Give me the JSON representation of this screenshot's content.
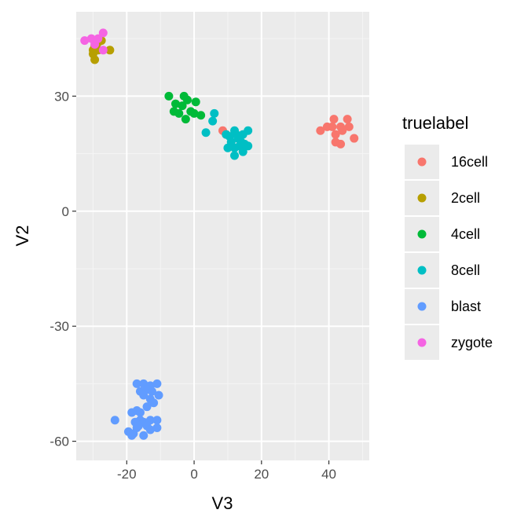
{
  "chart_data": {
    "type": "scatter",
    "xlabel": "V3",
    "ylabel": "V2",
    "xlim": [
      -35,
      52
    ],
    "ylim": [
      -65,
      52
    ],
    "x_ticks": [
      -20,
      0,
      20,
      40
    ],
    "y_ticks": [
      -60,
      -30,
      0,
      30
    ],
    "x_tick_labels": [
      "-20",
      "0",
      "20",
      "40"
    ],
    "y_tick_labels": [
      "-60",
      "-30",
      "0",
      "30"
    ],
    "grid": true,
    "background": "#ebebeb",
    "legend": {
      "title": "truelabel",
      "position": "right"
    },
    "series": [
      {
        "name": "16cell",
        "color": "#F8766D",
        "points": [
          [
            37.5,
            21
          ],
          [
            39.5,
            22
          ],
          [
            41.5,
            24
          ],
          [
            43.5,
            22
          ],
          [
            45.5,
            24
          ],
          [
            46,
            22
          ],
          [
            47.5,
            19
          ],
          [
            42,
            20
          ],
          [
            42,
            18
          ],
          [
            43.5,
            17.5
          ],
          [
            41,
            22
          ],
          [
            44,
            21
          ],
          [
            8.5,
            21
          ],
          [
            9.5,
            20
          ]
        ]
      },
      {
        "name": "2cell",
        "color": "#B79F00",
        "points": [
          [
            -29.5,
            39.5
          ],
          [
            -30,
            42
          ],
          [
            -29.5,
            43
          ],
          [
            -28.5,
            44
          ],
          [
            -27.5,
            44.5
          ],
          [
            -25,
            42
          ],
          [
            -28.5,
            42
          ],
          [
            -30,
            41
          ]
        ]
      },
      {
        "name": "4cell",
        "color": "#00BA38",
        "points": [
          [
            -7.5,
            30
          ],
          [
            -5.5,
            28
          ],
          [
            -3,
            30
          ],
          [
            -2,
            29
          ],
          [
            0.5,
            28.5
          ],
          [
            -6,
            26
          ],
          [
            -4.5,
            25.5
          ],
          [
            -2.5,
            24
          ],
          [
            -1,
            26
          ],
          [
            0,
            25.5
          ],
          [
            2,
            25
          ],
          [
            -3.5,
            27.5
          ]
        ]
      },
      {
        "name": "8cell",
        "color": "#00BFC4",
        "points": [
          [
            3.5,
            20.5
          ],
          [
            5.5,
            23.5
          ],
          [
            6,
            25.5
          ],
          [
            9.5,
            20
          ],
          [
            10.5,
            19.5
          ],
          [
            11,
            18
          ],
          [
            12,
            21
          ],
          [
            12.5,
            20
          ],
          [
            13,
            19
          ],
          [
            14,
            18
          ],
          [
            13.5,
            17
          ],
          [
            12,
            16.5
          ],
          [
            15,
            17.5
          ],
          [
            16,
            17
          ],
          [
            14.5,
            15.5
          ],
          [
            16,
            21
          ],
          [
            12,
            14.5
          ],
          [
            10,
            16.5
          ],
          [
            14.5,
            20
          ]
        ]
      },
      {
        "name": "blast",
        "color": "#619CFF",
        "points": [
          [
            -17,
            -45
          ],
          [
            -15,
            -45
          ],
          [
            -13,
            -45.5
          ],
          [
            -11,
            -45
          ],
          [
            -16,
            -47
          ],
          [
            -14,
            -46.5
          ],
          [
            -12.5,
            -47
          ],
          [
            -10.5,
            -48
          ],
          [
            -15,
            -48
          ],
          [
            -13,
            -49
          ],
          [
            -12,
            -50
          ],
          [
            -14,
            -51
          ],
          [
            -18.5,
            -52.5
          ],
          [
            -17,
            -52
          ],
          [
            -16,
            -52.5
          ],
          [
            -16,
            -54.5
          ],
          [
            -17.5,
            -55
          ],
          [
            -23.5,
            -54.5
          ],
          [
            -15,
            -55
          ],
          [
            -13,
            -54.5
          ],
          [
            -11,
            -54.5
          ],
          [
            -19.5,
            -57.5
          ],
          [
            -18.5,
            -58.5
          ],
          [
            -17,
            -56.5
          ],
          [
            -15,
            -58.5
          ],
          [
            -14,
            -56
          ],
          [
            -13,
            -57
          ],
          [
            -11,
            -56.5
          ],
          [
            -18,
            -58
          ],
          [
            -16.5,
            -56
          ]
        ]
      },
      {
        "name": "zygote",
        "color": "#F564E3",
        "points": [
          [
            -32.5,
            44.5
          ],
          [
            -30.5,
            45
          ],
          [
            -28.5,
            45
          ],
          [
            -27,
            46.5
          ],
          [
            -27,
            42
          ],
          [
            -29.5,
            43.5
          ]
        ]
      }
    ]
  }
}
